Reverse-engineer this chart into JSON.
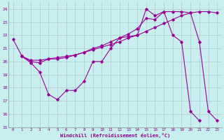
{
  "xlabel": "Windchill (Refroidissement éolien,°C)",
  "bg_color": "#c8eef0",
  "line_color": "#990099",
  "grid_color": "#b0c8cc",
  "ylim": [
    15,
    24.5
  ],
  "xlim": [
    -0.5,
    23.5
  ],
  "yticks": [
    15,
    16,
    17,
    18,
    19,
    20,
    21,
    22,
    23,
    24
  ],
  "xticks": [
    0,
    1,
    2,
    3,
    4,
    5,
    6,
    7,
    8,
    9,
    10,
    11,
    12,
    13,
    14,
    15,
    16,
    17,
    18,
    19,
    20,
    21,
    22,
    23
  ],
  "line1_x": [
    0,
    1,
    2,
    3,
    4,
    5,
    6,
    7,
    8,
    9,
    10,
    11,
    12,
    13,
    14,
    15,
    16,
    17,
    18,
    19,
    20,
    21
  ],
  "line1_y": [
    21.7,
    20.4,
    19.9,
    19.2,
    17.5,
    17.1,
    17.8,
    17.8,
    18.5,
    20.0,
    20.0,
    21.0,
    21.8,
    21.9,
    22.0,
    24.0,
    23.5,
    23.8,
    22.0,
    21.5,
    16.2,
    15.5
  ],
  "line2_x": [
    1,
    2,
    3,
    4,
    5,
    6,
    7,
    8,
    9,
    10,
    11,
    12,
    13,
    14,
    15,
    16,
    17,
    18,
    19,
    20,
    21,
    22,
    23
  ],
  "line2_y": [
    20.4,
    20.1,
    20.1,
    20.2,
    20.3,
    20.4,
    20.5,
    20.7,
    20.9,
    21.1,
    21.3,
    21.5,
    21.8,
    22.0,
    22.3,
    22.6,
    22.9,
    23.2,
    23.5,
    23.7,
    23.8,
    23.8,
    23.7
  ],
  "line3_x": [
    1,
    2,
    3,
    4,
    5,
    6,
    7,
    8,
    9,
    10,
    11,
    12,
    13,
    14,
    15,
    16,
    17,
    18,
    19,
    20,
    21,
    22,
    23
  ],
  "line3_y": [
    20.4,
    20.0,
    19.9,
    20.2,
    20.2,
    20.3,
    20.5,
    20.7,
    21.0,
    21.2,
    21.5,
    21.8,
    22.1,
    22.5,
    23.3,
    23.2,
    23.8,
    23.8,
    23.8,
    23.7,
    21.5,
    16.2,
    15.5
  ]
}
